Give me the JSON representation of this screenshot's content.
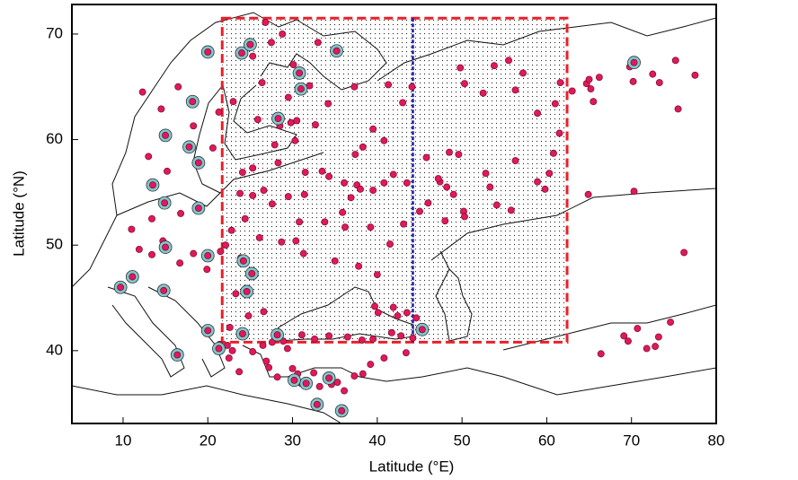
{
  "chart_data": {
    "type": "scatter",
    "x_label": "Latitude (°E)",
    "y_label": "Latitude (°N)",
    "xlim": [
      3.96,
      80
    ],
    "ylim": [
      33.1,
      72.8
    ],
    "xticks": [
      10,
      20,
      30,
      40,
      50,
      60,
      70,
      80
    ],
    "yticks": [
      40,
      50,
      60,
      70
    ],
    "region": {
      "color": "#e8202a",
      "xlim": [
        21.7,
        62.4
      ],
      "ylim": [
        40.8,
        71.5
      ]
    },
    "divider": {
      "color": "#1a1aa0",
      "x": 44.2
    },
    "series": [
      {
        "color": "#e0195a",
        "ring": false,
        "x": [
          12.3,
          16.5,
          14.5,
          18.3,
          20.6,
          13,
          15.2,
          21.3,
          23,
          25.3,
          26.4,
          28.8,
          26.8,
          27.5,
          30.1,
          32,
          29.5,
          33,
          31.1,
          25.9,
          28.5,
          29.8,
          30.5,
          32.7,
          34.2,
          37.3,
          41.3,
          43,
          39.5,
          40.8,
          38.3,
          37.4,
          33.5,
          34.3,
          36.1,
          37.6,
          38,
          36.9,
          39.5,
          41.9,
          43.5,
          45.8,
          49.6,
          48.2,
          52.8,
          53.3,
          56.3,
          60.3,
          60.8,
          59.8,
          61,
          61.5,
          58.9,
          56.3,
          52.5,
          50.3,
          55.5,
          57.2,
          61.6,
          63,
          49.8,
          53.8,
          47.4,
          46,
          49,
          50.2,
          48,
          45,
          54.1,
          55.8,
          40.8,
          43.1,
          41.5,
          39.2,
          35.9,
          36.2,
          30.8,
          27.6,
          29.5,
          31.4,
          25.3,
          23.8,
          24.4,
          26.6,
          30.3,
          28.3,
          24.1,
          25.3,
          27.9,
          31.5,
          33.8,
          30.4,
          28.7,
          31.3,
          35,
          37.8,
          40,
          39.7,
          41.9,
          42.4,
          43.5,
          44.6,
          40.1,
          41.7,
          42.8,
          44.2,
          31.1,
          32.6,
          34.3,
          36.5,
          38.2,
          39.5,
          26.1,
          22.1,
          19.9,
          16.7,
          18.3,
          13.4,
          11,
          16.8,
          13.4,
          14.7,
          11.9,
          21.5,
          22.8,
          23.9,
          23.3,
          26.6,
          24.8,
          22.6,
          21.4,
          22.3,
          22.9,
          23.7,
          22.5,
          25.3,
          26.5,
          27.6,
          28.9,
          29.4,
          26.9,
          27.2,
          28.2,
          30,
          30.6,
          31,
          32.5,
          33.2,
          35.3,
          36.1,
          34.6,
          37.3,
          38.3,
          39.2,
          40.8,
          43.4,
          64.7,
          65,
          65.2,
          66.2,
          65.5,
          69.8,
          70.2,
          72.5,
          73.3,
          75.2,
          77.5,
          75.5,
          70.3,
          64.9,
          76.2,
          69.1,
          70.7,
          71.8,
          72.8,
          74.6,
          73.2,
          66.4,
          69.6,
          47.2,
          50.3,
          58.9,
          48.5,
          44.1
        ],
        "values": [
          64.5,
          65,
          62.9,
          61.3,
          59.2,
          58.4,
          57,
          62.6,
          63.6,
          67.9,
          65.4,
          70,
          71.1,
          69.2,
          67.1,
          65.1,
          64,
          69.2,
          66.5,
          61.9,
          61.3,
          61.6,
          61.8,
          61.4,
          63.4,
          65,
          65.2,
          63.5,
          61,
          59.9,
          59.3,
          58.6,
          57,
          56.5,
          55.9,
          55.7,
          55.3,
          54.5,
          55.2,
          56.7,
          55.9,
          58.3,
          58.6,
          55.5,
          56.8,
          55.5,
          58,
          56.8,
          58.7,
          55.3,
          63.4,
          60.6,
          62.5,
          64.7,
          64.4,
          65.3,
          67.5,
          66.3,
          65.4,
          64.6,
          66.8,
          67,
          56,
          54,
          54.8,
          53.2,
          52.3,
          53.2,
          53.8,
          53.3,
          55.9,
          52,
          50.1,
          51.7,
          53.1,
          51.7,
          52.2,
          53.9,
          54.6,
          54.8,
          54.7,
          54.9,
          52.5,
          55.2,
          59.9,
          57.8,
          56.9,
          57.3,
          59.5,
          56.9,
          52.2,
          50.4,
          50.3,
          49.2,
          48.5,
          48,
          47.2,
          44.2,
          44.1,
          43.3,
          43.6,
          43.1,
          43.6,
          41.7,
          41.4,
          41.2,
          41.5,
          41.1,
          41.4,
          41.3,
          41,
          41.1,
          50.7,
          50,
          47.7,
          48.3,
          49.2,
          52.5,
          51.5,
          53,
          49.1,
          50.4,
          49.6,
          49.4,
          51.4,
          48.8,
          45.4,
          43.7,
          43.3,
          42.2,
          40.6,
          40.5,
          40,
          38,
          39.3,
          39.9,
          40.5,
          40.8,
          40.9,
          40.2,
          39,
          38.4,
          37.5,
          38.3,
          37.8,
          36.9,
          37.9,
          36.6,
          37,
          36.2,
          36.8,
          37.6,
          37.8,
          38.7,
          39.3,
          39.8,
          65.3,
          65.7,
          64.8,
          65.9,
          63.6,
          66.9,
          65.5,
          66.2,
          65.4,
          67.5,
          66.1,
          62.9,
          55.1,
          54.8,
          49.3,
          41.4,
          42.1,
          40.2,
          40.4,
          42.7,
          41.3,
          39.7,
          40.9,
          56.3,
          52.7,
          56,
          58.8,
          65
        ]
      },
      {
        "color": "#e0195a",
        "ring": true,
        "ring_color": "#7fc8d0",
        "x": [
          20,
          24,
          25,
          35.2,
          30.8,
          31,
          18.2,
          15,
          17.8,
          18.9,
          28.3,
          13.5,
          14.9,
          18.9,
          15,
          20,
          24.2,
          25.2,
          24.6,
          14.8,
          9.7,
          11.1,
          16.4,
          20,
          24.1,
          28.2,
          21.3,
          45.3,
          32.9,
          35.8,
          34.3,
          31.6,
          30.2,
          70.3
        ],
        "values": [
          68.3,
          68.2,
          69,
          68.4,
          66.3,
          64.8,
          63.6,
          60.4,
          59.3,
          57.8,
          62,
          55.7,
          54,
          53.5,
          49.8,
          49,
          48.5,
          47.3,
          45.6,
          45.7,
          46,
          47,
          39.6,
          41.9,
          41.6,
          41.5,
          40.2,
          42,
          34.9,
          34.3,
          37.4,
          36.9,
          37.2,
          67.3
        ]
      }
    ]
  }
}
